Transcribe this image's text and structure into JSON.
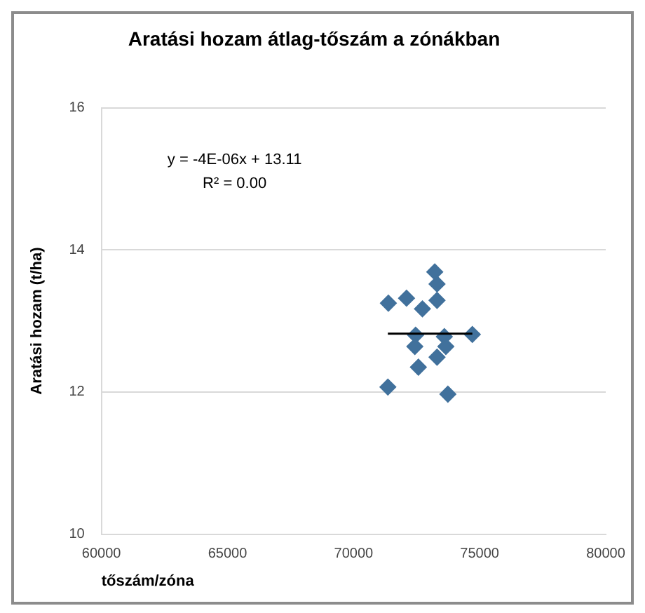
{
  "chart_data": {
    "type": "scatter",
    "title": "Aratási hozam átlag-tőszám a zónákban",
    "xlabel": "tőszám/zóna",
    "ylabel": "Aratási hozam (t/ha)",
    "x": [
      71380,
      72100,
      72730,
      73220,
      73310,
      73310,
      72460,
      72430,
      72570,
      73600,
      73660,
      73310,
      74710,
      71360,
      73740
    ],
    "series": [
      {
        "color": "#41719c",
        "marker": "diamond",
        "values": [
          13.25,
          13.32,
          13.17,
          13.69,
          13.52,
          13.29,
          12.8,
          12.64,
          12.35,
          12.78,
          12.64,
          12.49,
          12.81,
          12.07,
          11.97
        ]
      },
      {
        "type": "line",
        "color": "#000000",
        "marker": "none",
        "x": [
          71360,
          74710
        ],
        "values": [
          12.82,
          12.82
        ]
      }
    ],
    "xlim": [
      60000,
      80000
    ],
    "xticks": [
      60000,
      65000,
      70000,
      75000,
      80000
    ],
    "ylim": [
      10,
      16
    ],
    "yticks": [
      10,
      12,
      14,
      16
    ],
    "grid": "y",
    "legend": false,
    "annotations": [
      "y = -4E-06x + 13.11",
      "R² = 0.00"
    ]
  }
}
